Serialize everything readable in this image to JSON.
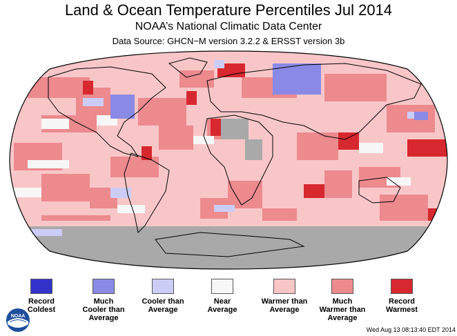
{
  "header": {
    "title": "Land & Ocean Temperature Percentiles Jul 2014",
    "subtitle": "NOAA’s National Climatic Data Center",
    "source": "Data Source: GHCN−M version 3.2.2 & ERSST version 3b"
  },
  "legend": [
    {
      "lines": [
        "Record",
        "Coldest"
      ],
      "color": "#3333cc"
    },
    {
      "lines": [
        "Much",
        "Cooler than",
        "Average"
      ],
      "color": "#8a8ae6"
    },
    {
      "lines": [
        "Cooler than",
        "Average"
      ],
      "color": "#cccdf7"
    },
    {
      "lines": [
        "Near",
        "Average"
      ],
      "color": "#f7f7f7"
    },
    {
      "lines": [
        "Warmer than",
        "Average"
      ],
      "color": "#f9c6c8"
    },
    {
      "lines": [
        "Much",
        "Warmer than",
        "Average"
      ],
      "color": "#ec8a8e"
    },
    {
      "lines": [
        "Record",
        "Warmest"
      ],
      "color": "#d6282e"
    }
  ],
  "colors": {
    "missing_data": "#a9a9a9",
    "land_outline": "#000000"
  },
  "logo": {
    "icon": "noaa-logo-icon",
    "text": "NOAA"
  },
  "timestamp": "Wed Aug 13 08:13:40 EDT 2014"
}
